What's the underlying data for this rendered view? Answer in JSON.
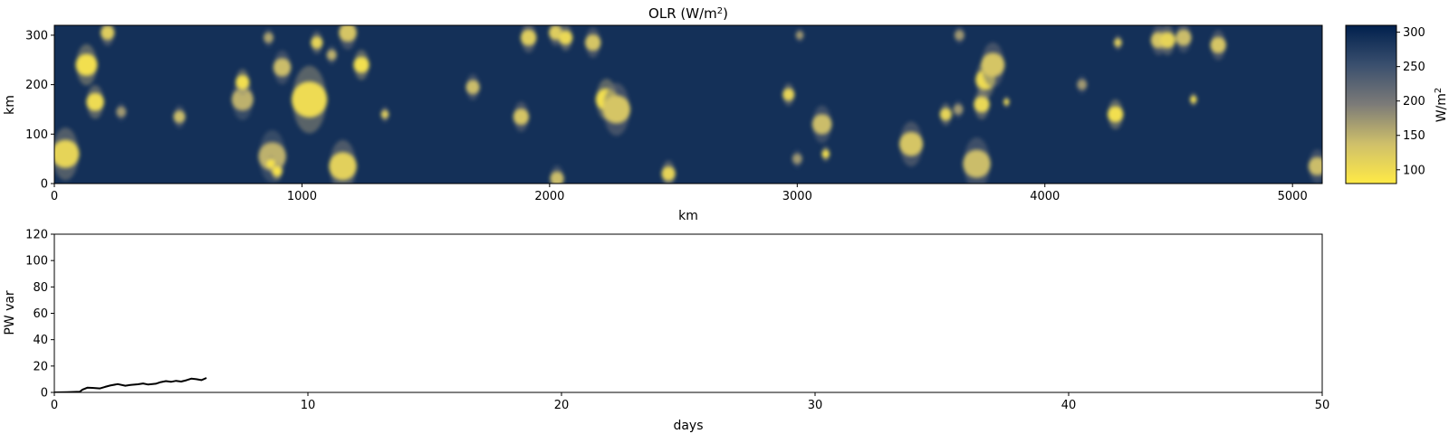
{
  "chart_data": [
    {
      "type": "heatmap",
      "title": "OLR (W/m",
      "title_sup": "2",
      "title_close": ")",
      "xlabel": "km",
      "ylabel": "km",
      "xlim": [
        0,
        5120
      ],
      "ylim": [
        0,
        320
      ],
      "xticks": [
        0,
        1000,
        2000,
        3000,
        4000,
        5000
      ],
      "yticks": [
        0,
        100,
        200,
        300
      ],
      "colorbar": {
        "label": "W/m",
        "label_sup": "2",
        "range": [
          80,
          310
        ],
        "ticks": [
          100,
          150,
          200,
          250,
          300
        ],
        "colormap": "cividis_r",
        "high_color": "#00204d",
        "mid_color": "#7c7b78",
        "low_color": "#ffea46"
      },
      "background_olr": 290,
      "cells": [
        {
          "x": 45,
          "y": 60,
          "r": 28,
          "olr": 110
        },
        {
          "x": 130,
          "y": 240,
          "r": 22,
          "olr": 95
        },
        {
          "x": 165,
          "y": 165,
          "r": 18,
          "olr": 100
        },
        {
          "x": 215,
          "y": 305,
          "r": 14,
          "olr": 120
        },
        {
          "x": 270,
          "y": 145,
          "r": 10,
          "olr": 170
        },
        {
          "x": 505,
          "y": 135,
          "r": 12,
          "olr": 140
        },
        {
          "x": 760,
          "y": 170,
          "r": 22,
          "olr": 150
        },
        {
          "x": 760,
          "y": 205,
          "r": 14,
          "olr": 95
        },
        {
          "x": 865,
          "y": 295,
          "r": 10,
          "olr": 160
        },
        {
          "x": 880,
          "y": 55,
          "r": 28,
          "olr": 150
        },
        {
          "x": 875,
          "y": 40,
          "r": 9,
          "olr": 90
        },
        {
          "x": 900,
          "y": 25,
          "r": 10,
          "olr": 90
        },
        {
          "x": 920,
          "y": 235,
          "r": 18,
          "olr": 140
        },
        {
          "x": 1030,
          "y": 170,
          "r": 36,
          "olr": 100
        },
        {
          "x": 1060,
          "y": 285,
          "r": 12,
          "olr": 110
        },
        {
          "x": 1120,
          "y": 260,
          "r": 10,
          "olr": 150
        },
        {
          "x": 1165,
          "y": 35,
          "r": 28,
          "olr": 115
        },
        {
          "x": 1185,
          "y": 305,
          "r": 18,
          "olr": 130
        },
        {
          "x": 1240,
          "y": 240,
          "r": 16,
          "olr": 95
        },
        {
          "x": 1335,
          "y": 140,
          "r": 8,
          "olr": 120
        },
        {
          "x": 1690,
          "y": 195,
          "r": 14,
          "olr": 140
        },
        {
          "x": 1885,
          "y": 135,
          "r": 16,
          "olr": 130
        },
        {
          "x": 1915,
          "y": 295,
          "r": 16,
          "olr": 120
        },
        {
          "x": 2025,
          "y": 305,
          "r": 14,
          "olr": 120
        },
        {
          "x": 2065,
          "y": 295,
          "r": 14,
          "olr": 105
        },
        {
          "x": 2030,
          "y": 10,
          "r": 14,
          "olr": 140
        },
        {
          "x": 2175,
          "y": 285,
          "r": 16,
          "olr": 130
        },
        {
          "x": 2230,
          "y": 170,
          "r": 22,
          "olr": 95
        },
        {
          "x": 2270,
          "y": 150,
          "r": 28,
          "olr": 130
        },
        {
          "x": 2480,
          "y": 20,
          "r": 14,
          "olr": 110
        },
        {
          "x": 2965,
          "y": 180,
          "r": 12,
          "olr": 110
        },
        {
          "x": 3100,
          "y": 120,
          "r": 20,
          "olr": 140
        },
        {
          "x": 3115,
          "y": 60,
          "r": 8,
          "olr": 95
        },
        {
          "x": 3010,
          "y": 300,
          "r": 8,
          "olr": 170
        },
        {
          "x": 3460,
          "y": 80,
          "r": 24,
          "olr": 130
        },
        {
          "x": 3600,
          "y": 140,
          "r": 12,
          "olr": 110
        },
        {
          "x": 3650,
          "y": 150,
          "r": 10,
          "olr": 170
        },
        {
          "x": 3725,
          "y": 40,
          "r": 28,
          "olr": 140
        },
        {
          "x": 3745,
          "y": 160,
          "r": 16,
          "olr": 105
        },
        {
          "x": 3760,
          "y": 210,
          "r": 20,
          "olr": 100
        },
        {
          "x": 3790,
          "y": 240,
          "r": 24,
          "olr": 130
        },
        {
          "x": 3845,
          "y": 165,
          "r": 6,
          "olr": 100
        },
        {
          "x": 3655,
          "y": 300,
          "r": 10,
          "olr": 170
        },
        {
          "x": 4150,
          "y": 200,
          "r": 10,
          "olr": 170
        },
        {
          "x": 4285,
          "y": 140,
          "r": 16,
          "olr": 95
        },
        {
          "x": 4295,
          "y": 285,
          "r": 8,
          "olr": 120
        },
        {
          "x": 4460,
          "y": 290,
          "r": 16,
          "olr": 130
        },
        {
          "x": 4495,
          "y": 290,
          "r": 16,
          "olr": 110
        },
        {
          "x": 4560,
          "y": 295,
          "r": 16,
          "olr": 140
        },
        {
          "x": 4600,
          "y": 170,
          "r": 7,
          "olr": 100
        },
        {
          "x": 4700,
          "y": 280,
          "r": 16,
          "olr": 130
        },
        {
          "x": 5100,
          "y": 35,
          "r": 18,
          "olr": 140
        },
        {
          "x": 3000,
          "y": 50,
          "r": 10,
          "olr": 170
        }
      ]
    },
    {
      "type": "line",
      "xlabel": "days",
      "ylabel": "PW var",
      "xlim": [
        0,
        50
      ],
      "ylim": [
        0,
        120
      ],
      "xticks": [
        0,
        10,
        20,
        30,
        40,
        50
      ],
      "yticks": [
        0,
        20,
        40,
        60,
        80,
        100,
        120
      ],
      "series": [
        {
          "color": "#000000",
          "x": [
            0,
            0.5,
            1.0,
            1.1,
            1.3,
            1.5,
            1.8,
            2.0,
            2.2,
            2.5,
            2.8,
            3.0,
            3.3,
            3.5,
            3.7,
            4.0,
            4.2,
            4.4,
            4.6,
            4.8,
            5.0,
            5.2,
            5.4,
            5.6,
            5.8,
            6.0
          ],
          "y": [
            0,
            0.2,
            0.5,
            2.0,
            3.6,
            3.4,
            3.0,
            4.2,
            5.2,
            6.3,
            5.1,
            5.6,
            6.2,
            6.8,
            6.0,
            6.6,
            7.8,
            8.6,
            8.0,
            8.8,
            8.2,
            9.2,
            10.4,
            10.0,
            9.3,
            11.0
          ]
        }
      ]
    }
  ]
}
